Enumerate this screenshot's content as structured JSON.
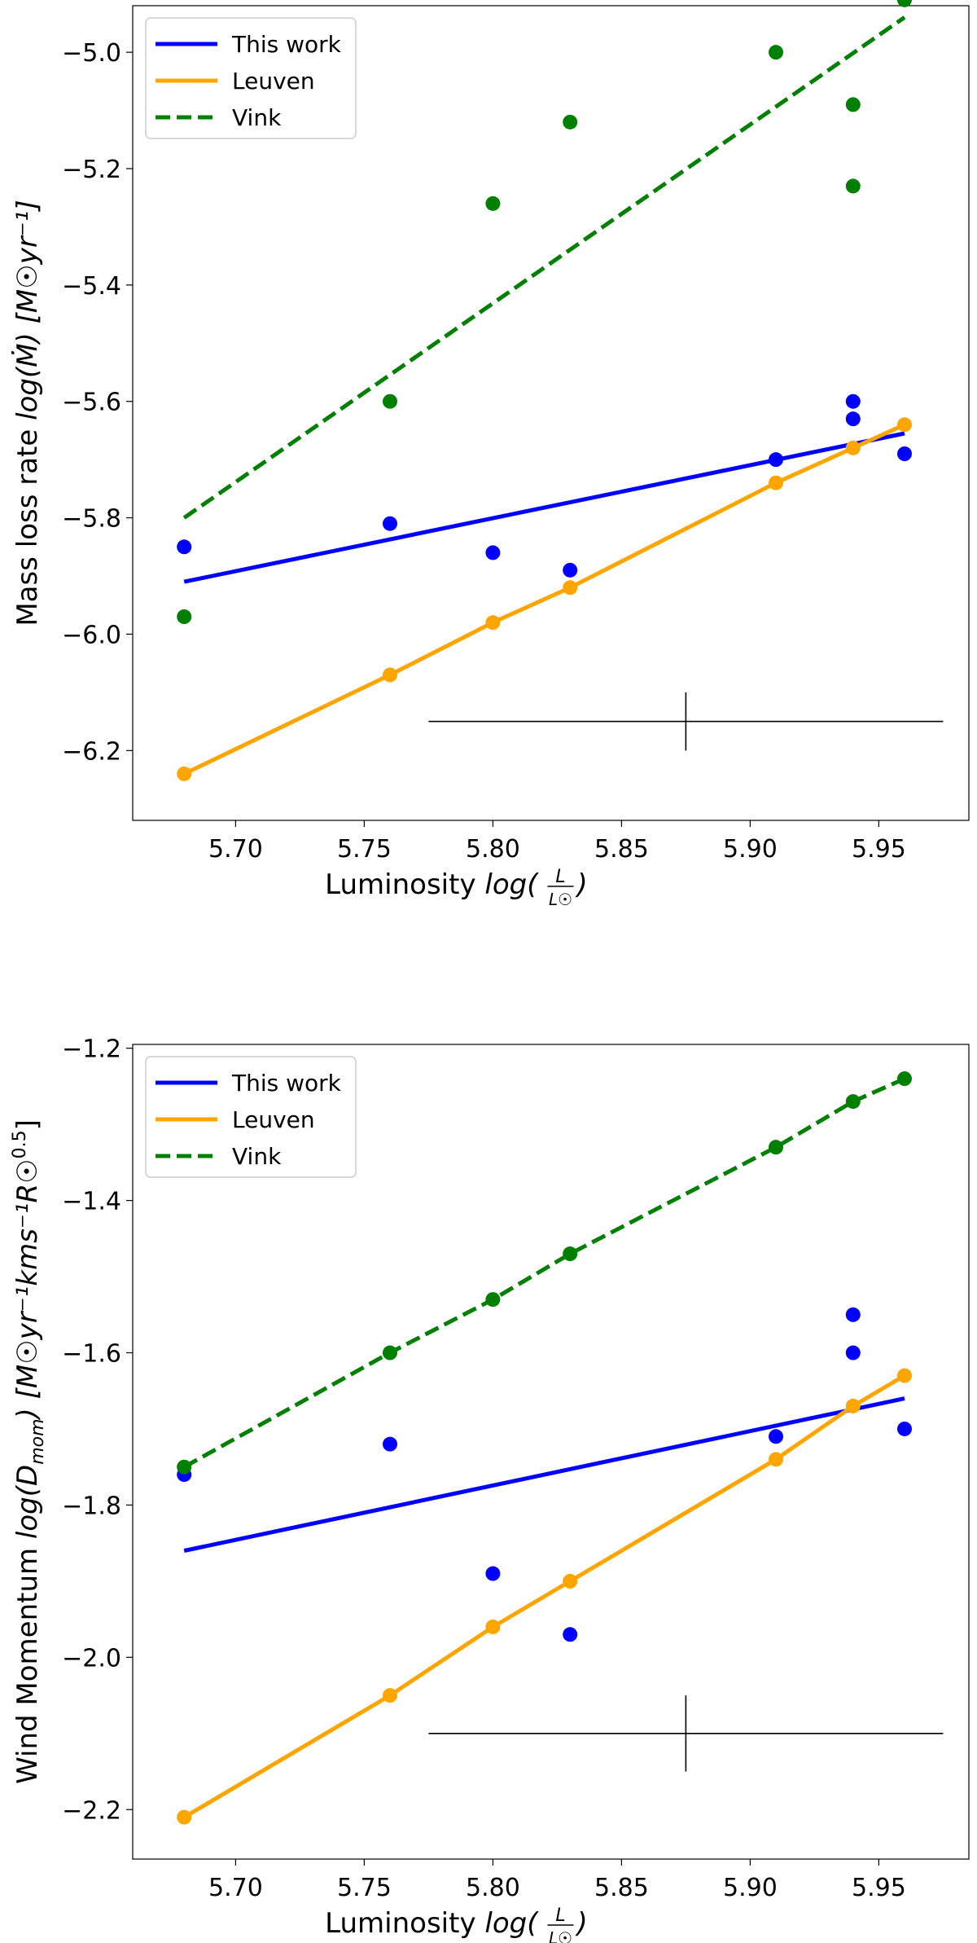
{
  "chart_data": [
    {
      "type": "scatter",
      "title": "",
      "xlabel": "Luminosity log(L/L☉)",
      "xlabel_parts": {
        "prefix": "Luminosity ",
        "func": "log(",
        "num": "L",
        "den": "L☉",
        "close": ")"
      },
      "ylabel": "Mass loss rate log(Ṁ) [M☉yr⁻¹]",
      "ylabel_parts": {
        "prefix": "Mass loss rate ",
        "math": "log(Ṁ)",
        "unit": "[M☉yr⁻¹]"
      },
      "xlim": [
        5.66,
        5.985
      ],
      "ylim": [
        -6.32,
        -4.92
      ],
      "xticks": [
        "5.70",
        "5.75",
        "5.80",
        "5.85",
        "5.90",
        "5.95"
      ],
      "xtick_values": [
        5.7,
        5.75,
        5.8,
        5.85,
        5.9,
        5.95
      ],
      "yticks": [
        "−6.2",
        "−6.0",
        "−5.8",
        "−5.6",
        "−5.4",
        "−5.2",
        "−5.0"
      ],
      "ytick_values": [
        -6.2,
        -6.0,
        -5.8,
        -5.6,
        -5.4,
        -5.2,
        -5.0
      ],
      "legend": [
        "This work",
        "Leuven",
        "Vink"
      ],
      "legend_location": "upper-left",
      "series": [
        {
          "name": "This work",
          "color": "#0000ff",
          "line_style": "solid",
          "points": [
            [
              5.68,
              -5.85
            ],
            [
              5.76,
              -5.81
            ],
            [
              5.8,
              -5.86
            ],
            [
              5.83,
              -5.89
            ],
            [
              5.91,
              -5.7
            ],
            [
              5.94,
              -5.6
            ],
            [
              5.94,
              -5.63
            ],
            [
              5.96,
              -5.69
            ]
          ],
          "fit": [
            [
              5.68,
              -5.91
            ],
            [
              5.96,
              -5.655
            ]
          ]
        },
        {
          "name": "Leuven",
          "color": "#ffa500",
          "line_style": "solid",
          "points": [
            [
              5.68,
              -6.24
            ],
            [
              5.76,
              -6.07
            ],
            [
              5.8,
              -5.98
            ],
            [
              5.83,
              -5.92
            ],
            [
              5.91,
              -5.74
            ],
            [
              5.94,
              -5.68
            ],
            [
              5.96,
              -5.64
            ]
          ],
          "fit": [
            [
              5.68,
              -6.24
            ],
            [
              5.76,
              -6.07
            ],
            [
              5.8,
              -5.98
            ],
            [
              5.83,
              -5.92
            ],
            [
              5.91,
              -5.74
            ],
            [
              5.94,
              -5.68
            ],
            [
              5.96,
              -5.64
            ]
          ]
        },
        {
          "name": "Vink",
          "color": "#008000",
          "line_style": "dashed",
          "points": [
            [
              5.68,
              -5.97
            ],
            [
              5.76,
              -5.6
            ],
            [
              5.8,
              -5.26
            ],
            [
              5.83,
              -5.12
            ],
            [
              5.91,
              -5.0
            ],
            [
              5.94,
              -5.09
            ],
            [
              5.94,
              -5.23
            ],
            [
              5.96,
              -4.91
            ]
          ],
          "fit": [
            [
              5.68,
              -5.8
            ],
            [
              5.96,
              -4.94
            ]
          ]
        }
      ],
      "error_bar": {
        "x": 5.875,
        "y": -6.15,
        "xerr": 0.1,
        "yerr": 0.05,
        "color": "#000000"
      }
    },
    {
      "type": "scatter",
      "title": "",
      "xlabel": "Luminosity log(L/L☉)",
      "xlabel_parts": {
        "prefix": "Luminosity ",
        "func": "log(",
        "num": "L",
        "den": "L☉",
        "close": ")"
      },
      "ylabel": "Wind Momentum log(Dmom) [M☉yr⁻¹kms⁻¹R☉^0.5]",
      "ylabel_parts": {
        "prefix": "Wind Momentum ",
        "math": "log(D",
        "sub": "mom",
        "close": ")",
        "unit": "[M☉yr⁻¹kms⁻¹R☉",
        "sup": "0.5",
        "unit_close": "]"
      },
      "xlim": [
        5.66,
        5.985
      ],
      "ylim": [
        -2.265,
        -1.195
      ],
      "xticks": [
        "5.70",
        "5.75",
        "5.80",
        "5.85",
        "5.90",
        "5.95"
      ],
      "xtick_values": [
        5.7,
        5.75,
        5.8,
        5.85,
        5.9,
        5.95
      ],
      "yticks": [
        "−2.2",
        "−2.0",
        "−1.8",
        "−1.6",
        "−1.4",
        "−1.2"
      ],
      "ytick_values": [
        -2.2,
        -2.0,
        -1.8,
        -1.6,
        -1.4,
        -1.2
      ],
      "legend": [
        "This work",
        "Leuven",
        "Vink"
      ],
      "legend_location": "upper-left",
      "series": [
        {
          "name": "This work",
          "color": "#0000ff",
          "line_style": "solid",
          "points": [
            [
              5.68,
              -1.76
            ],
            [
              5.76,
              -1.72
            ],
            [
              5.8,
              -1.89
            ],
            [
              5.83,
              -1.97
            ],
            [
              5.91,
              -1.71
            ],
            [
              5.94,
              -1.55
            ],
            [
              5.94,
              -1.6
            ],
            [
              5.96,
              -1.7
            ]
          ],
          "fit": [
            [
              5.68,
              -1.86
            ],
            [
              5.96,
              -1.66
            ]
          ]
        },
        {
          "name": "Leuven",
          "color": "#ffa500",
          "line_style": "solid",
          "points": [
            [
              5.68,
              -2.21
            ],
            [
              5.76,
              -2.05
            ],
            [
              5.8,
              -1.96
            ],
            [
              5.83,
              -1.9
            ],
            [
              5.91,
              -1.74
            ],
            [
              5.94,
              -1.67
            ],
            [
              5.96,
              -1.63
            ]
          ],
          "fit": [
            [
              5.68,
              -2.21
            ],
            [
              5.76,
              -2.05
            ],
            [
              5.8,
              -1.96
            ],
            [
              5.83,
              -1.9
            ],
            [
              5.91,
              -1.74
            ],
            [
              5.94,
              -1.67
            ],
            [
              5.96,
              -1.63
            ]
          ]
        },
        {
          "name": "Vink",
          "color": "#008000",
          "line_style": "dashed",
          "points": [
            [
              5.68,
              -1.75
            ],
            [
              5.76,
              -1.6
            ],
            [
              5.8,
              -1.53
            ],
            [
              5.83,
              -1.47
            ],
            [
              5.91,
              -1.33
            ],
            [
              5.94,
              -1.27
            ],
            [
              5.96,
              -1.24
            ]
          ],
          "fit": [
            [
              5.68,
              -1.75
            ],
            [
              5.76,
              -1.6
            ],
            [
              5.8,
              -1.53
            ],
            [
              5.83,
              -1.47
            ],
            [
              5.91,
              -1.33
            ],
            [
              5.94,
              -1.27
            ],
            [
              5.96,
              -1.24
            ]
          ]
        }
      ],
      "error_bar": {
        "x": 5.875,
        "y": -2.1,
        "xerr": 0.1,
        "yerr": 0.05,
        "color": "#000000"
      }
    }
  ]
}
